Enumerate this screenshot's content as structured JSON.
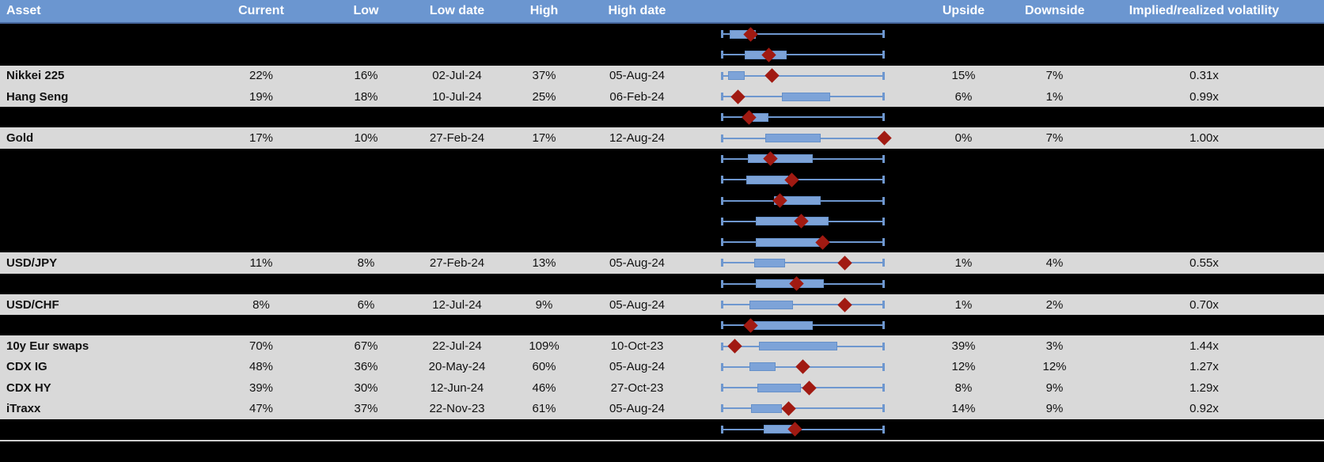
{
  "header": {
    "asset": "Asset",
    "current": "Current",
    "low": "Low",
    "low_date": "Low date",
    "high": "High",
    "high_date": "High date",
    "chart": "",
    "upside": "Upside",
    "downside": "Downside",
    "ivol": "Implied/realized volatility"
  },
  "colors": {
    "header_bg": "#6b96d0",
    "header_text": "#ffffff",
    "row_bg": "#d9d9d9",
    "hidden_bg": "#000000",
    "box_fill": "#7da3d8",
    "box_border": "#6590c9",
    "whisker": "#6e97cf",
    "marker": "#a11a12",
    "divider": "#cfcfcf"
  },
  "rows": [
    {
      "hidden": true,
      "asset": "",
      "current": "",
      "low": "",
      "low_date": "",
      "high": "",
      "high_date": "",
      "upside": "",
      "downside": "",
      "ivol": "",
      "box": {
        "low_pct": 5,
        "high_pct": 21,
        "marker_pct": 18
      }
    },
    {
      "hidden": true,
      "asset": "",
      "current": "",
      "low": "",
      "low_date": "",
      "high": "",
      "high_date": "",
      "upside": "",
      "downside": "",
      "ivol": "",
      "box": {
        "low_pct": 14,
        "high_pct": 40,
        "marker_pct": 29
      }
    },
    {
      "hidden": false,
      "asset": "Nikkei 225",
      "current": "22%",
      "low": "16%",
      "low_date": "02-Jul-24",
      "high": "37%",
      "high_date": "05-Aug-24",
      "upside": "15%",
      "downside": "7%",
      "ivol": "0.31x",
      "box": {
        "low_pct": 4,
        "high_pct": 14,
        "marker_pct": 31
      }
    },
    {
      "hidden": false,
      "asset": "Hang Seng",
      "current": "19%",
      "low": "18%",
      "low_date": "10-Jul-24",
      "high": "25%",
      "high_date": "06-Feb-24",
      "upside": "6%",
      "downside": "1%",
      "ivol": "0.99x",
      "box": {
        "low_pct": 37,
        "high_pct": 67,
        "marker_pct": 10
      }
    },
    {
      "hidden": true,
      "asset": "",
      "current": "",
      "low": "",
      "low_date": "",
      "high": "",
      "high_date": "",
      "upside": "",
      "downside": "",
      "ivol": "",
      "box": {
        "low_pct": 19,
        "high_pct": 29,
        "marker_pct": 17
      }
    },
    {
      "hidden": false,
      "asset": "Gold",
      "current": "17%",
      "low": "10%",
      "low_date": "27-Feb-24",
      "high": "17%",
      "high_date": "12-Aug-24",
      "upside": "0%",
      "downside": "7%",
      "ivol": "1.00x",
      "box": {
        "low_pct": 27,
        "high_pct": 61,
        "marker_pct": 100
      }
    },
    {
      "hidden": true,
      "asset": "",
      "current": "",
      "low": "",
      "low_date": "",
      "high": "",
      "high_date": "",
      "upside": "",
      "downside": "",
      "ivol": "",
      "box": {
        "low_pct": 16,
        "high_pct": 56,
        "marker_pct": 30
      }
    },
    {
      "hidden": true,
      "asset": "",
      "current": "",
      "low": "",
      "low_date": "",
      "high": "",
      "high_date": "",
      "upside": "",
      "downside": "",
      "ivol": "",
      "box": {
        "low_pct": 15,
        "high_pct": 41,
        "marker_pct": 43
      }
    },
    {
      "hidden": true,
      "asset": "",
      "current": "",
      "low": "",
      "low_date": "",
      "high": "",
      "high_date": "",
      "upside": "",
      "downside": "",
      "ivol": "",
      "box": {
        "low_pct": 32,
        "high_pct": 61,
        "marker_pct": 36
      }
    },
    {
      "hidden": true,
      "asset": "",
      "current": "",
      "low": "",
      "low_date": "",
      "high": "",
      "high_date": "",
      "upside": "",
      "downside": "",
      "ivol": "",
      "box": {
        "low_pct": 21,
        "high_pct": 66,
        "marker_pct": 49
      }
    },
    {
      "hidden": true,
      "asset": "",
      "current": "",
      "low": "",
      "low_date": "",
      "high": "",
      "high_date": "",
      "upside": "",
      "downside": "",
      "ivol": "",
      "box": {
        "low_pct": 21,
        "high_pct": 62,
        "marker_pct": 62
      }
    },
    {
      "hidden": false,
      "asset": "USD/JPY",
      "current": "11%",
      "low": "8%",
      "low_date": "27-Feb-24",
      "high": "13%",
      "high_date": "05-Aug-24",
      "upside": "1%",
      "downside": "4%",
      "ivol": "0.55x",
      "box": {
        "low_pct": 20,
        "high_pct": 39,
        "marker_pct": 76
      }
    },
    {
      "hidden": true,
      "asset": "",
      "current": "",
      "low": "",
      "low_date": "",
      "high": "",
      "high_date": "",
      "upside": "",
      "downside": "",
      "ivol": "",
      "box": {
        "low_pct": 21,
        "high_pct": 63,
        "marker_pct": 46
      }
    },
    {
      "hidden": false,
      "asset": "USD/CHF",
      "current": "8%",
      "low": "6%",
      "low_date": "12-Jul-24",
      "high": "9%",
      "high_date": "05-Aug-24",
      "upside": "1%",
      "downside": "2%",
      "ivol": "0.70x",
      "box": {
        "low_pct": 17,
        "high_pct": 44,
        "marker_pct": 76
      }
    },
    {
      "hidden": true,
      "asset": "",
      "current": "",
      "low": "",
      "low_date": "",
      "high": "",
      "high_date": "",
      "upside": "",
      "downside": "",
      "ivol": "",
      "box": {
        "low_pct": 19,
        "high_pct": 56,
        "marker_pct": 18
      }
    },
    {
      "hidden": false,
      "asset": "10y Eur swaps",
      "current": "70%",
      "low": "67%",
      "low_date": "22-Jul-24",
      "high": "109%",
      "high_date": "10-Oct-23",
      "upside": "39%",
      "downside": "3%",
      "ivol": "1.44x",
      "box": {
        "low_pct": 23,
        "high_pct": 71,
        "marker_pct": 8
      }
    },
    {
      "hidden": false,
      "asset": "CDX IG",
      "current": "48%",
      "low": "36%",
      "low_date": "20-May-24",
      "high": "60%",
      "high_date": "05-Aug-24",
      "upside": "12%",
      "downside": "12%",
      "ivol": "1.27x",
      "box": {
        "low_pct": 17,
        "high_pct": 33,
        "marker_pct": 50
      }
    },
    {
      "hidden": false,
      "asset": "CDX HY",
      "current": "39%",
      "low": "30%",
      "low_date": "12-Jun-24",
      "high": "46%",
      "high_date": "27-Oct-23",
      "upside": "8%",
      "downside": "9%",
      "ivol": "1.29x",
      "box": {
        "low_pct": 22,
        "high_pct": 49,
        "marker_pct": 54
      }
    },
    {
      "hidden": false,
      "asset": "iTraxx",
      "current": "47%",
      "low": "37%",
      "low_date": "22-Nov-23",
      "high": "61%",
      "high_date": "05-Aug-24",
      "upside": "14%",
      "downside": "9%",
      "ivol": "0.92x",
      "box": {
        "low_pct": 18,
        "high_pct": 37,
        "marker_pct": 41
      }
    },
    {
      "hidden": true,
      "asset": "",
      "current": "",
      "low": "",
      "low_date": "",
      "high": "",
      "high_date": "",
      "upside": "",
      "downside": "",
      "ivol": "",
      "box": {
        "low_pct": 26,
        "high_pct": 44,
        "marker_pct": 45
      }
    }
  ]
}
